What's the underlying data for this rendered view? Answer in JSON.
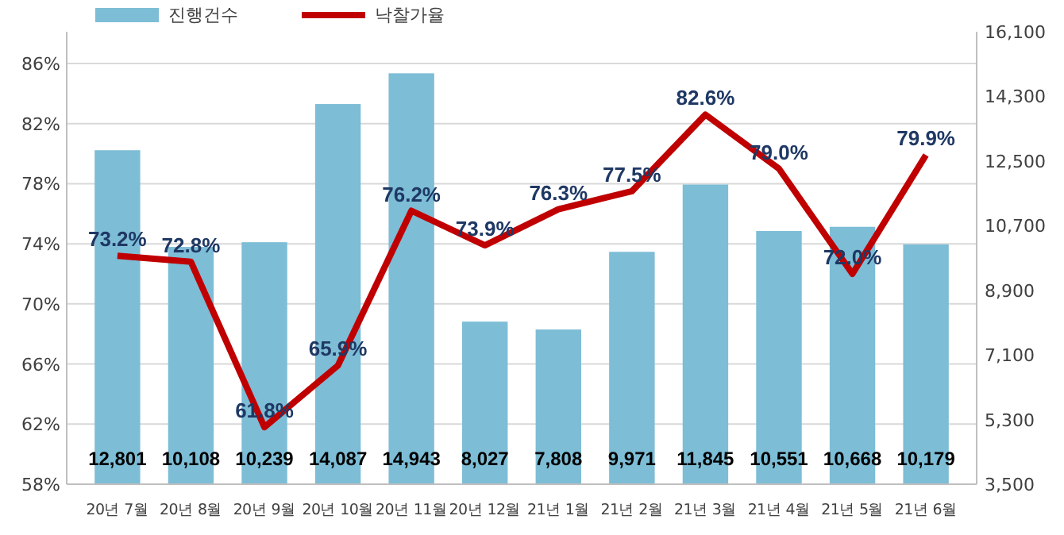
{
  "chart_data": {
    "type": "bar",
    "categories": [
      "20년 7월",
      "20년 8월",
      "20년 9월",
      "20년 10월",
      "20년 11월",
      "20년 12월",
      "21년 1월",
      "21년 2월",
      "21년 3월",
      "21년 4월",
      "21년 5월",
      "21년 6월"
    ],
    "series": [
      {
        "name": "진행건수",
        "axis": "y2",
        "color": "#7dbdd6",
        "values": [
          12801,
          10108,
          10239,
          14087,
          14943,
          8027,
          7808,
          9971,
          11845,
          10551,
          10668,
          10179
        ],
        "value_labels": [
          "12,801",
          "10,108",
          "10,239",
          "14,087",
          "14,943",
          "8,027",
          "7,808",
          "9,971",
          "11,845",
          "10,551",
          "10,668",
          "10,179"
        ]
      },
      {
        "name": "낙찰가율",
        "type": "line",
        "axis": "y",
        "color": "#c00000",
        "values": [
          73.2,
          72.8,
          61.8,
          65.9,
          76.2,
          73.9,
          76.3,
          77.5,
          82.6,
          79.0,
          72.0,
          79.9
        ],
        "value_labels": [
          "73.2%",
          "72.8%",
          "61.8%",
          "65.9%",
          "76.2%",
          "73.9%",
          "76.3%",
          "77.5%",
          "82.6%",
          "79.0%",
          "72.0%",
          "79.9%"
        ]
      }
    ],
    "ylim": [
      58,
      86
    ],
    "yticks": [
      {
        "value": 58,
        "label": "58%"
      },
      {
        "value": 62,
        "label": "62%"
      },
      {
        "value": 66,
        "label": "66%"
      },
      {
        "value": 70,
        "label": "70%"
      },
      {
        "value": 74,
        "label": "74%"
      },
      {
        "value": 78,
        "label": "78%"
      },
      {
        "value": 82,
        "label": "82%"
      },
      {
        "value": 86,
        "label": "86%"
      }
    ],
    "y2lim": [
      3500,
      16100
    ],
    "y2ticks": [
      {
        "value": 3500,
        "label": "3,500"
      },
      {
        "value": 5300,
        "label": "5,300"
      },
      {
        "value": 7100,
        "label": "7,100"
      },
      {
        "value": 8900,
        "label": "8,900"
      },
      {
        "value": 10700,
        "label": "10,700"
      },
      {
        "value": 12500,
        "label": "12,500"
      },
      {
        "value": 14300,
        "label": "14,300"
      },
      {
        "value": 16100,
        "label": "16,100"
      }
    ],
    "grid": "y",
    "legend": "top",
    "data_labels": true,
    "marker": "none",
    "line_style": "solid"
  }
}
